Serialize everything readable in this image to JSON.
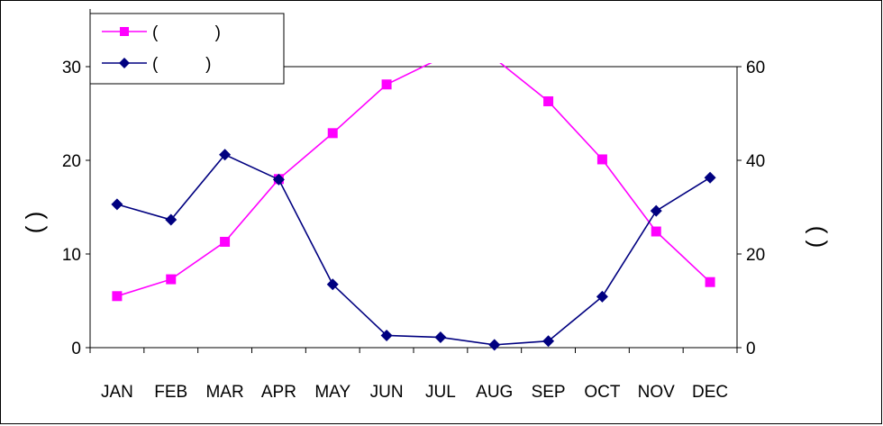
{
  "chart_data": {
    "type": "line",
    "categories": [
      "JAN",
      "FEB",
      "MAR",
      "APR",
      "MAY",
      "JUN",
      "JUL",
      "AUG",
      "SEP",
      "OCT",
      "NOV",
      "DEC"
    ],
    "series": [
      {
        "name": "(            )",
        "axis": "left",
        "color": "#FF00FF",
        "marker": "square",
        "values": [
          5.5,
          7.3,
          11.3,
          18.0,
          22.9,
          28.1,
          30.9,
          30.9,
          26.3,
          20.1,
          12.4,
          7.0
        ]
      },
      {
        "name": "(          )",
        "axis": "right",
        "color": "#000080",
        "marker": "diamond",
        "values": [
          30.6,
          27.3,
          41.2,
          35.9,
          13.5,
          2.6,
          2.2,
          0.6,
          1.4,
          10.9,
          29.2,
          36.3
        ]
      }
    ],
    "y_left": {
      "label": "(  )",
      "ylim": [
        0,
        30
      ],
      "ticks": [
        0,
        10,
        20,
        30
      ]
    },
    "y_right": {
      "label": "(  )",
      "ylim": [
        0,
        60
      ],
      "ticks": [
        0,
        20,
        40,
        60
      ]
    },
    "grid": false,
    "legend_position": "top-left"
  }
}
